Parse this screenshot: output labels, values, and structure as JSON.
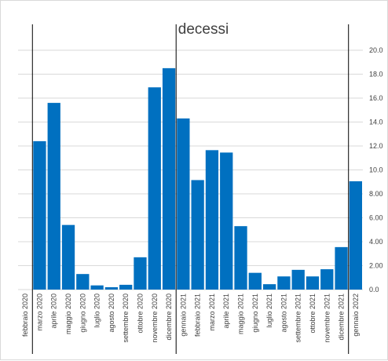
{
  "chart_data": {
    "type": "bar",
    "title": "decessi",
    "categories": [
      "febbraio 2020",
      "marzo 2020",
      "aprile 2020",
      "maggio 2020",
      "giugno 2020",
      "luglio 2020",
      "agosto 2020",
      "settembre 2020",
      "ottobre 2020",
      "novembre 2020",
      "dicembre 2020",
      "gennaio 2021",
      "febbraio 2021",
      "marzo 2021",
      "aprile 2021",
      "maggio 2021",
      "giugno 2021",
      "luglio 2021",
      "agosto 2021",
      "settembre 2021",
      "ottobre 2021",
      "novembre 2021",
      "dicembre 2021",
      "gennaio 2022"
    ],
    "values": [
      0.0,
      12.4,
      15.6,
      5.4,
      1.3,
      0.35,
      0.2,
      0.4,
      2.7,
      16.9,
      18.5,
      14.3,
      9.15,
      11.65,
      11.45,
      5.3,
      1.4,
      0.45,
      1.1,
      1.65,
      1.1,
      1.7,
      3.55,
      9.05
    ],
    "y_ticks": [
      "0.0",
      "2.00",
      "4.00",
      "6.00",
      "8.00",
      "10.0",
      "12.0",
      "14.0",
      "16.0",
      "18.0",
      "20.0"
    ],
    "ylim": [
      0,
      20
    ],
    "y_axis_position": "right",
    "grid": true,
    "bar_color": "#0070C0",
    "gridline_color": "#d9d9d9",
    "separator_color": "#000000",
    "year_separators_after": [
      "febbraio 2020",
      "dicembre 2020",
      "dicembre 2021"
    ]
  }
}
